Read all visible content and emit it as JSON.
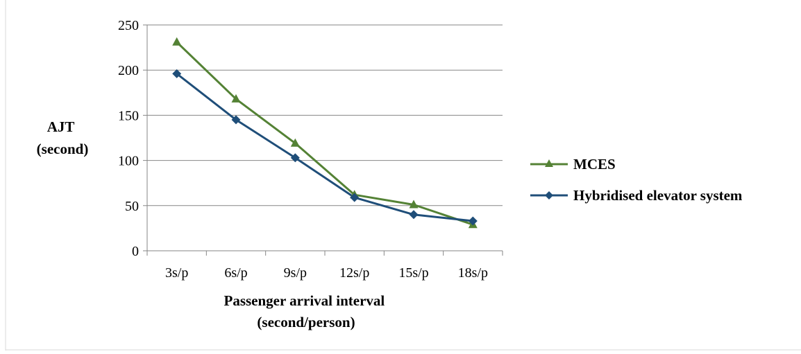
{
  "chart_data": {
    "type": "line",
    "categories": [
      "3s/p",
      "6s/p",
      "9s/p",
      "12s/p",
      "15s/p",
      "18s/p"
    ],
    "series": [
      {
        "name": "MCES",
        "values": [
          231,
          168,
          119,
          62,
          51,
          29
        ],
        "color": "#548235",
        "marker": "triangle"
      },
      {
        "name": "Hybridised elevator system",
        "values": [
          196,
          145,
          103,
          59,
          40,
          33
        ],
        "color": "#1f4e79",
        "marker": "diamond"
      }
    ],
    "ylim": [
      0,
      250
    ],
    "yticks": [
      0,
      50,
      100,
      150,
      200,
      250
    ],
    "ylabel_lines": [
      "AJT",
      "(second)"
    ],
    "xlabel_lines": [
      "Passenger arrival interval",
      "(second/person)"
    ],
    "grid": "horizontal",
    "legend_position": "right"
  }
}
